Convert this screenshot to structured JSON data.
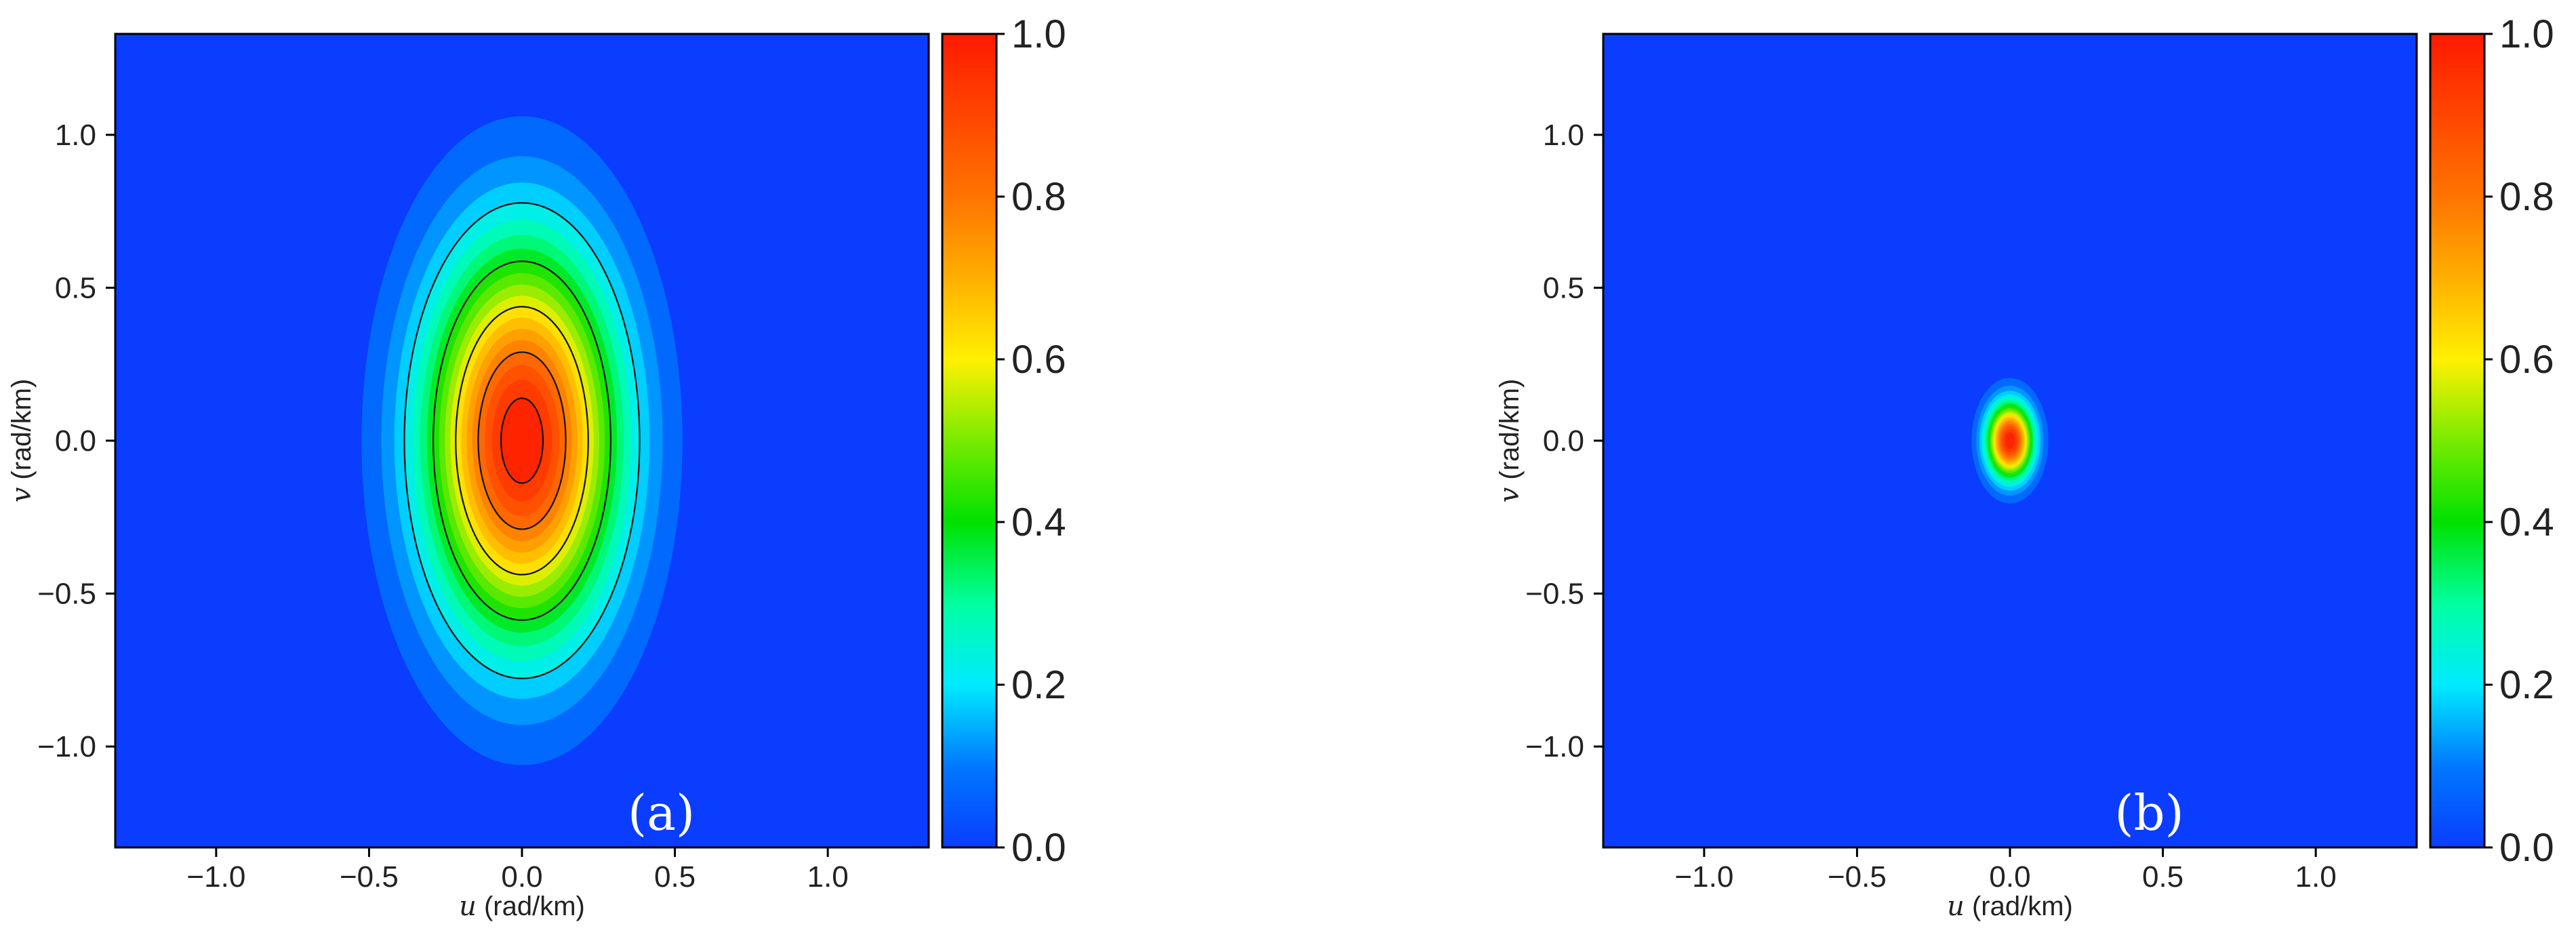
{
  "chart_data": [
    {
      "type": "heatmap",
      "panel_label": "(a)",
      "xlabel_var": "u",
      "xlabel_unit": " (rad/km)",
      "ylabel_var": "v",
      "ylabel_unit": " (rad/km)",
      "xlim": [
        -1.33,
        1.33
      ],
      "ylim": [
        -1.33,
        1.33
      ],
      "xticks": [
        -1.0,
        -0.5,
        0.0,
        0.5,
        1.0
      ],
      "xtick_labels": [
        "−1.0",
        "−0.5",
        "0.0",
        "0.5",
        "1.0"
      ],
      "yticks": [
        -1.0,
        -0.5,
        0.0,
        0.5,
        1.0
      ],
      "ytick_labels": [
        "−1.0",
        "−0.5",
        "0.0",
        "0.5",
        "1.0"
      ],
      "function": "2D Gaussian centered at (0, 0)",
      "center": [
        0.0,
        0.0
      ],
      "semi_axis_u_at_0.1": 0.46,
      "semi_axis_v_at_0.1": 0.93,
      "peak_value": 1.0,
      "contour_lines": [
        0.2,
        0.4,
        0.6,
        0.8,
        0.95
      ],
      "colorbar": {
        "range": [
          0.0,
          1.0
        ],
        "ticks": [
          0.0,
          0.2,
          0.4,
          0.6,
          0.8,
          1.0
        ],
        "tick_labels": [
          "0.0",
          "0.2",
          "0.4",
          "0.6",
          "0.8",
          "1.0"
        ],
        "colormap": "rainbow (blue to red)",
        "levels": 20
      }
    },
    {
      "type": "heatmap",
      "panel_label": "(b)",
      "xlabel_var": "u",
      "xlabel_unit": " (rad/km)",
      "ylabel_var": "v",
      "ylabel_unit": " (rad/km)",
      "xlim": [
        -1.33,
        1.33
      ],
      "ylim": [
        -1.33,
        1.33
      ],
      "xticks": [
        -1.0,
        -0.5,
        0.0,
        0.5,
        1.0
      ],
      "xtick_labels": [
        "−1.0",
        "−0.5",
        "0.0",
        "0.5",
        "1.0"
      ],
      "yticks": [
        -1.0,
        -0.5,
        0.0,
        0.5,
        1.0
      ],
      "ytick_labels": [
        "−1.0",
        "−0.5",
        "0.0",
        "0.5",
        "1.0"
      ],
      "function": "2D Gaussian centered at (0, 0)",
      "center": [
        0.0,
        0.0
      ],
      "semi_axis_u_at_0.1": 0.11,
      "semi_axis_v_at_0.1": 0.18,
      "peak_value": 1.0,
      "contour_lines": [],
      "colorbar": {
        "range": [
          0.0,
          1.0
        ],
        "ticks": [
          0.0,
          0.2,
          0.4,
          0.6,
          0.8,
          1.0
        ],
        "tick_labels": [
          "0.0",
          "0.2",
          "0.4",
          "0.6",
          "0.8",
          "1.0"
        ],
        "colormap": "rainbow (blue to red)",
        "levels": 20
      }
    }
  ],
  "colors": {
    "background_low": "#0a3dff",
    "peak": "#ff2a00",
    "contour_line": "#111111",
    "panel_label_text": "#ffffff",
    "axis": "#000000"
  }
}
